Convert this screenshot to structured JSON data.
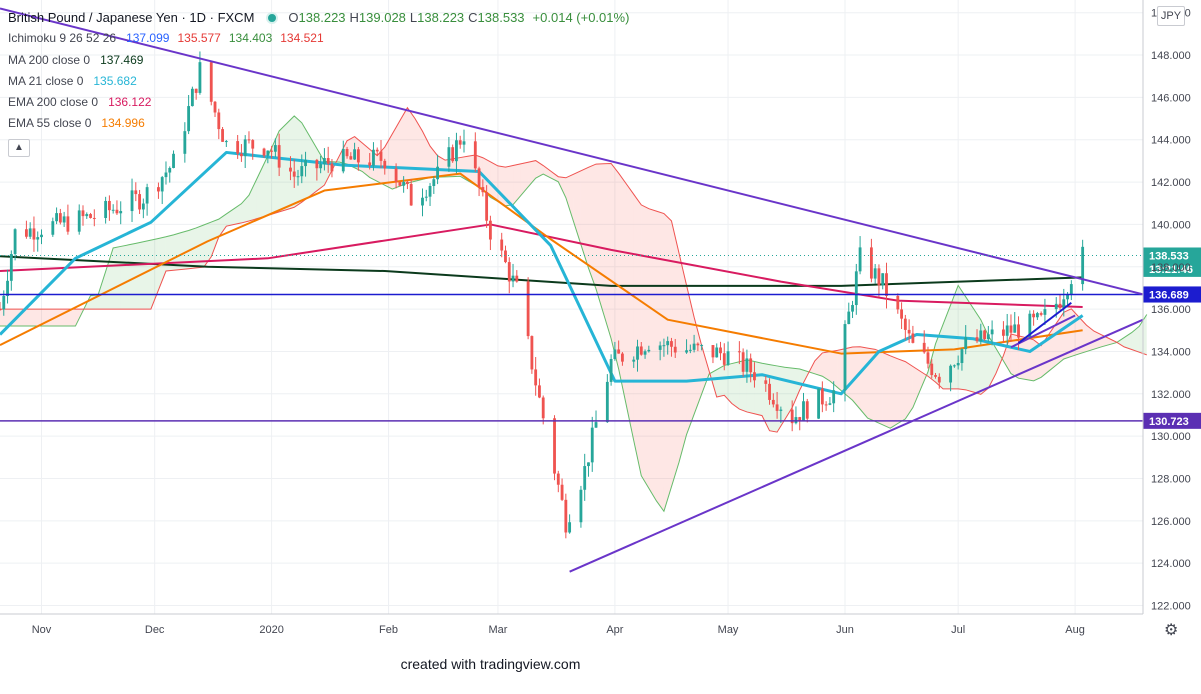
{
  "header": {
    "symbol": "British Pound / Japanese Yen · 1D · FXCM",
    "ohlc": [
      {
        "k": "O",
        "v": "138.223"
      },
      {
        "k": "H",
        "v": "139.028"
      },
      {
        "k": "L",
        "v": "138.223"
      },
      {
        "k": "C",
        "v": "138.533"
      }
    ],
    "change": "+0.014 (+0.01%)"
  },
  "indicators": [
    {
      "label": "Ichimoku 9 26 52 26",
      "values": [
        {
          "v": "137.099",
          "color": "#2962ff"
        },
        {
          "v": "135.577",
          "color": "#e53935"
        },
        {
          "v": "134.403",
          "color": "#388e3c"
        },
        {
          "v": "134.521",
          "color": "#e53935"
        }
      ]
    },
    {
      "label": "MA 200 close 0",
      "values": [
        {
          "v": "137.469",
          "color": "#0b3a1c"
        }
      ]
    },
    {
      "label": "MA 21 close 0",
      "values": [
        {
          "v": "135.682",
          "color": "#26b5d6"
        }
      ]
    },
    {
      "label": "EMA 200 close 0",
      "values": [
        {
          "v": "136.122",
          "color": "#d81b60"
        }
      ]
    },
    {
      "label": "EMA 55 close 0",
      "values": [
        {
          "v": "134.996",
          "color": "#f57c00"
        }
      ]
    }
  ],
  "currency_badge": "JPY",
  "collapse_icon": "chevron-up-icon",
  "settings_icon": "gear-icon",
  "footer": "created with tradingview.com",
  "chart_data": {
    "type": "candlestick",
    "ylim": [
      121.6,
      150.6
    ],
    "y_ticks": [
      122,
      124,
      126,
      128,
      130,
      132,
      134,
      136,
      138,
      140,
      142,
      144,
      146,
      148,
      150
    ],
    "y_tick_labels": [
      "122.000",
      "124.000",
      "126.000",
      "128.000",
      "130.000",
      "132.000",
      "134.000",
      "136.000",
      "138.000",
      "140.000",
      "142.000",
      "144.000",
      "146.000",
      "148.000",
      "150.000"
    ],
    "x_range": [
      "2019-10-21",
      "2020-08-19"
    ],
    "x_ticks": [
      {
        "date": "2019-11-01",
        "label": "Nov"
      },
      {
        "date": "2019-12-01",
        "label": "Dec"
      },
      {
        "date": "2020-01-01",
        "label": "2020"
      },
      {
        "date": "2020-02-01",
        "label": "Feb"
      },
      {
        "date": "2020-03-01",
        "label": "Mar"
      },
      {
        "date": "2020-04-01",
        "label": "Apr"
      },
      {
        "date": "2020-05-01",
        "label": "May"
      },
      {
        "date": "2020-06-01",
        "label": "Jun"
      },
      {
        "date": "2020-07-01",
        "label": "Jul"
      },
      {
        "date": "2020-08-01",
        "label": "Aug"
      }
    ],
    "price_anchors": [
      [
        "2019-10-21",
        136.0
      ],
      [
        "2019-10-25",
        139.6
      ],
      [
        "2019-11-05",
        140.0
      ],
      [
        "2019-11-15",
        140.4
      ],
      [
        "2019-11-28",
        141.3
      ],
      [
        "2019-12-06",
        142.9
      ],
      [
        "2019-12-13",
        147.3
      ],
      [
        "2019-12-20",
        143.8
      ],
      [
        "2019-12-31",
        143.7
      ],
      [
        "2020-01-07",
        142.3
      ],
      [
        "2020-01-17",
        143.0
      ],
      [
        "2020-01-31",
        143.1
      ],
      [
        "2020-02-07",
        141.2
      ],
      [
        "2020-02-14",
        142.3
      ],
      [
        "2020-02-21",
        144.3
      ],
      [
        "2020-02-28",
        139.7
      ],
      [
        "2020-03-06",
        136.9
      ],
      [
        "2020-03-12",
        131.7
      ],
      [
        "2020-03-19",
        126.0
      ],
      [
        "2020-03-24",
        128.4
      ],
      [
        "2020-03-31",
        133.5
      ],
      [
        "2020-04-10",
        134.5
      ],
      [
        "2020-04-20",
        134.1
      ],
      [
        "2020-04-30",
        133.9
      ],
      [
        "2020-05-08",
        133.0
      ],
      [
        "2020-05-18",
        130.9
      ],
      [
        "2020-05-25",
        131.7
      ],
      [
        "2020-05-29",
        132.1
      ],
      [
        "2020-06-05",
        138.4
      ],
      [
        "2020-06-11",
        137.2
      ],
      [
        "2020-06-19",
        134.2
      ],
      [
        "2020-06-26",
        132.9
      ],
      [
        "2020-07-03",
        134.3
      ],
      [
        "2020-07-13",
        134.9
      ],
      [
        "2020-07-23",
        135.4
      ],
      [
        "2020-07-28",
        136.5
      ],
      [
        "2020-07-31",
        137.6
      ],
      [
        "2020-08-03",
        138.5
      ]
    ],
    "series": [
      {
        "name": "MA 200 close 0",
        "color": "#0b3a1c",
        "values": [
          [
            "2019-10-21",
            138.5
          ],
          [
            "2019-12-15",
            138.0
          ],
          [
            "2020-01-31",
            137.8
          ],
          [
            "2020-03-31",
            137.1
          ],
          [
            "2020-05-31",
            137.1
          ],
          [
            "2020-08-03",
            137.5
          ]
        ]
      },
      {
        "name": "EMA 200 close 0",
        "color": "#d81b60",
        "values": [
          [
            "2019-10-21",
            137.8
          ],
          [
            "2019-12-31",
            138.4
          ],
          [
            "2020-02-28",
            140.0
          ],
          [
            "2020-03-31",
            138.8
          ],
          [
            "2020-05-15",
            137.3
          ],
          [
            "2020-06-15",
            136.4
          ],
          [
            "2020-08-03",
            136.1
          ]
        ]
      },
      {
        "name": "EMA 55 close 0",
        "color": "#f57c00",
        "values": [
          [
            "2019-10-21",
            134.3
          ],
          [
            "2019-12-15",
            139.2
          ],
          [
            "2020-01-15",
            141.6
          ],
          [
            "2020-02-20",
            142.4
          ],
          [
            "2020-03-15",
            139.3
          ],
          [
            "2020-04-15",
            135.5
          ],
          [
            "2020-05-31",
            133.9
          ],
          [
            "2020-06-30",
            134.1
          ],
          [
            "2020-08-03",
            135.0
          ]
        ]
      },
      {
        "name": "MA 21 close 0",
        "color": "#26b5d6",
        "values": [
          [
            "2019-10-21",
            134.8
          ],
          [
            "2019-11-10",
            138.4
          ],
          [
            "2019-11-30",
            140.1
          ],
          [
            "2019-12-20",
            143.4
          ],
          [
            "2020-01-20",
            142.8
          ],
          [
            "2020-02-25",
            142.5
          ],
          [
            "2020-03-15",
            139.0
          ],
          [
            "2020-04-01",
            132.6
          ],
          [
            "2020-04-20",
            132.6
          ],
          [
            "2020-05-10",
            132.9
          ],
          [
            "2020-05-31",
            132.0
          ],
          [
            "2020-06-10",
            134.0
          ],
          [
            "2020-06-20",
            134.8
          ],
          [
            "2020-07-05",
            134.6
          ],
          [
            "2020-07-20",
            134.0
          ],
          [
            "2020-08-03",
            135.7
          ]
        ]
      }
    ],
    "horizontal_levels": [
      {
        "value": 136.693,
        "label": "136.693",
        "color": "#1c1ccf"
      },
      {
        "value": 130.723,
        "label": "130.723",
        "color": "#5b2fb3"
      }
    ],
    "price_labels": [
      {
        "value": 138.533,
        "label": "138.533",
        "color": "#26a69a"
      },
      {
        "value": 137.9,
        "label": "13:21:46",
        "color": "#26a69a"
      },
      {
        "value": 136.689,
        "label": "136.689",
        "color": "#1c1ccf"
      }
    ],
    "trendlines": [
      {
        "from": [
          "2019-10-21",
          150.2
        ],
        "to": [
          "2020-08-19",
          136.7
        ],
        "color": "#6a35c9"
      },
      {
        "from": [
          "2020-03-20",
          123.6
        ],
        "to": [
          "2020-08-19",
          135.5
        ],
        "color": "#6a35c9"
      },
      {
        "from": [
          "2020-07-15",
          134.2
        ],
        "to": [
          "2020-08-01",
          135.7
        ],
        "color": "#6a35c9"
      },
      {
        "from": [
          "2020-07-17",
          134.4
        ],
        "to": [
          "2020-07-31",
          136.3
        ],
        "color": "#1c1ccf"
      }
    ]
  }
}
